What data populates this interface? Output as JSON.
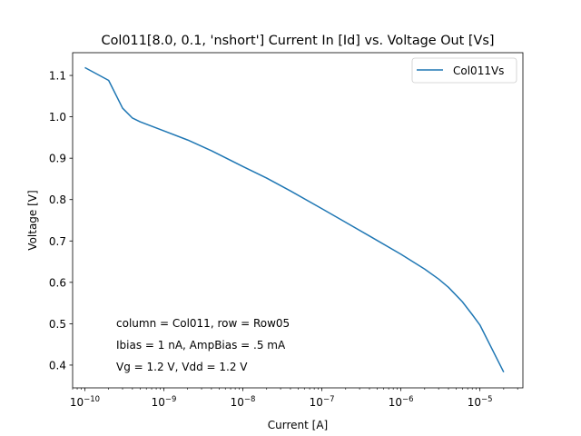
{
  "chart_data": {
    "type": "line",
    "title": "Col011[8.0, 0.1, 'nshort'] Current In [Id] vs. Voltage Out [Vs]",
    "xlabel": "Current [A]",
    "ylabel": "Voltage [V]",
    "x_scale": "log",
    "xlim": [
      7e-11,
      3.5e-05
    ],
    "ylim": [
      0.345,
      1.155
    ],
    "grid": false,
    "legend_position": "top-right",
    "x_ticks": [
      {
        "value": 1e-10,
        "base": "10",
        "exp": "−10"
      },
      {
        "value": 1e-09,
        "base": "10",
        "exp": "−9"
      },
      {
        "value": 1e-08,
        "base": "10",
        "exp": "−8"
      },
      {
        "value": 1e-07,
        "base": "10",
        "exp": "−7"
      },
      {
        "value": 1e-06,
        "base": "10",
        "exp": "−6"
      },
      {
        "value": 1e-05,
        "base": "10",
        "exp": "−5"
      }
    ],
    "y_ticks": [
      {
        "value": 0.4,
        "label": "0.4"
      },
      {
        "value": 0.5,
        "label": "0.5"
      },
      {
        "value": 0.6,
        "label": "0.6"
      },
      {
        "value": 0.7,
        "label": "0.7"
      },
      {
        "value": 0.8,
        "label": "0.8"
      },
      {
        "value": 0.9,
        "label": "0.9"
      },
      {
        "value": 1.0,
        "label": "1.0"
      },
      {
        "value": 1.1,
        "label": "1.1"
      }
    ],
    "series": [
      {
        "name": "Col011Vs",
        "color": "#1f77b4",
        "x": [
          1e-10,
          2e-10,
          3e-10,
          4e-10,
          5e-10,
          1e-09,
          2e-09,
          4e-09,
          1e-08,
          2e-08,
          4e-08,
          1e-07,
          2e-07,
          4e-07,
          1e-06,
          2e-06,
          3e-06,
          4e-06,
          6e-06,
          8e-06,
          1e-05,
          2e-05
        ],
        "y": [
          1.119,
          1.088,
          1.021,
          0.997,
          0.988,
          0.966,
          0.944,
          0.918,
          0.88,
          0.852,
          0.821,
          0.778,
          0.745,
          0.712,
          0.668,
          0.632,
          0.608,
          0.588,
          0.553,
          0.522,
          0.497,
          0.383
        ]
      }
    ],
    "annotations": [
      "column = Col011, row = Row05",
      "Ibias = 1 nA, AmpBias = .5 mA",
      "Vg = 1.2 V, Vdd = 1.2 V"
    ]
  }
}
